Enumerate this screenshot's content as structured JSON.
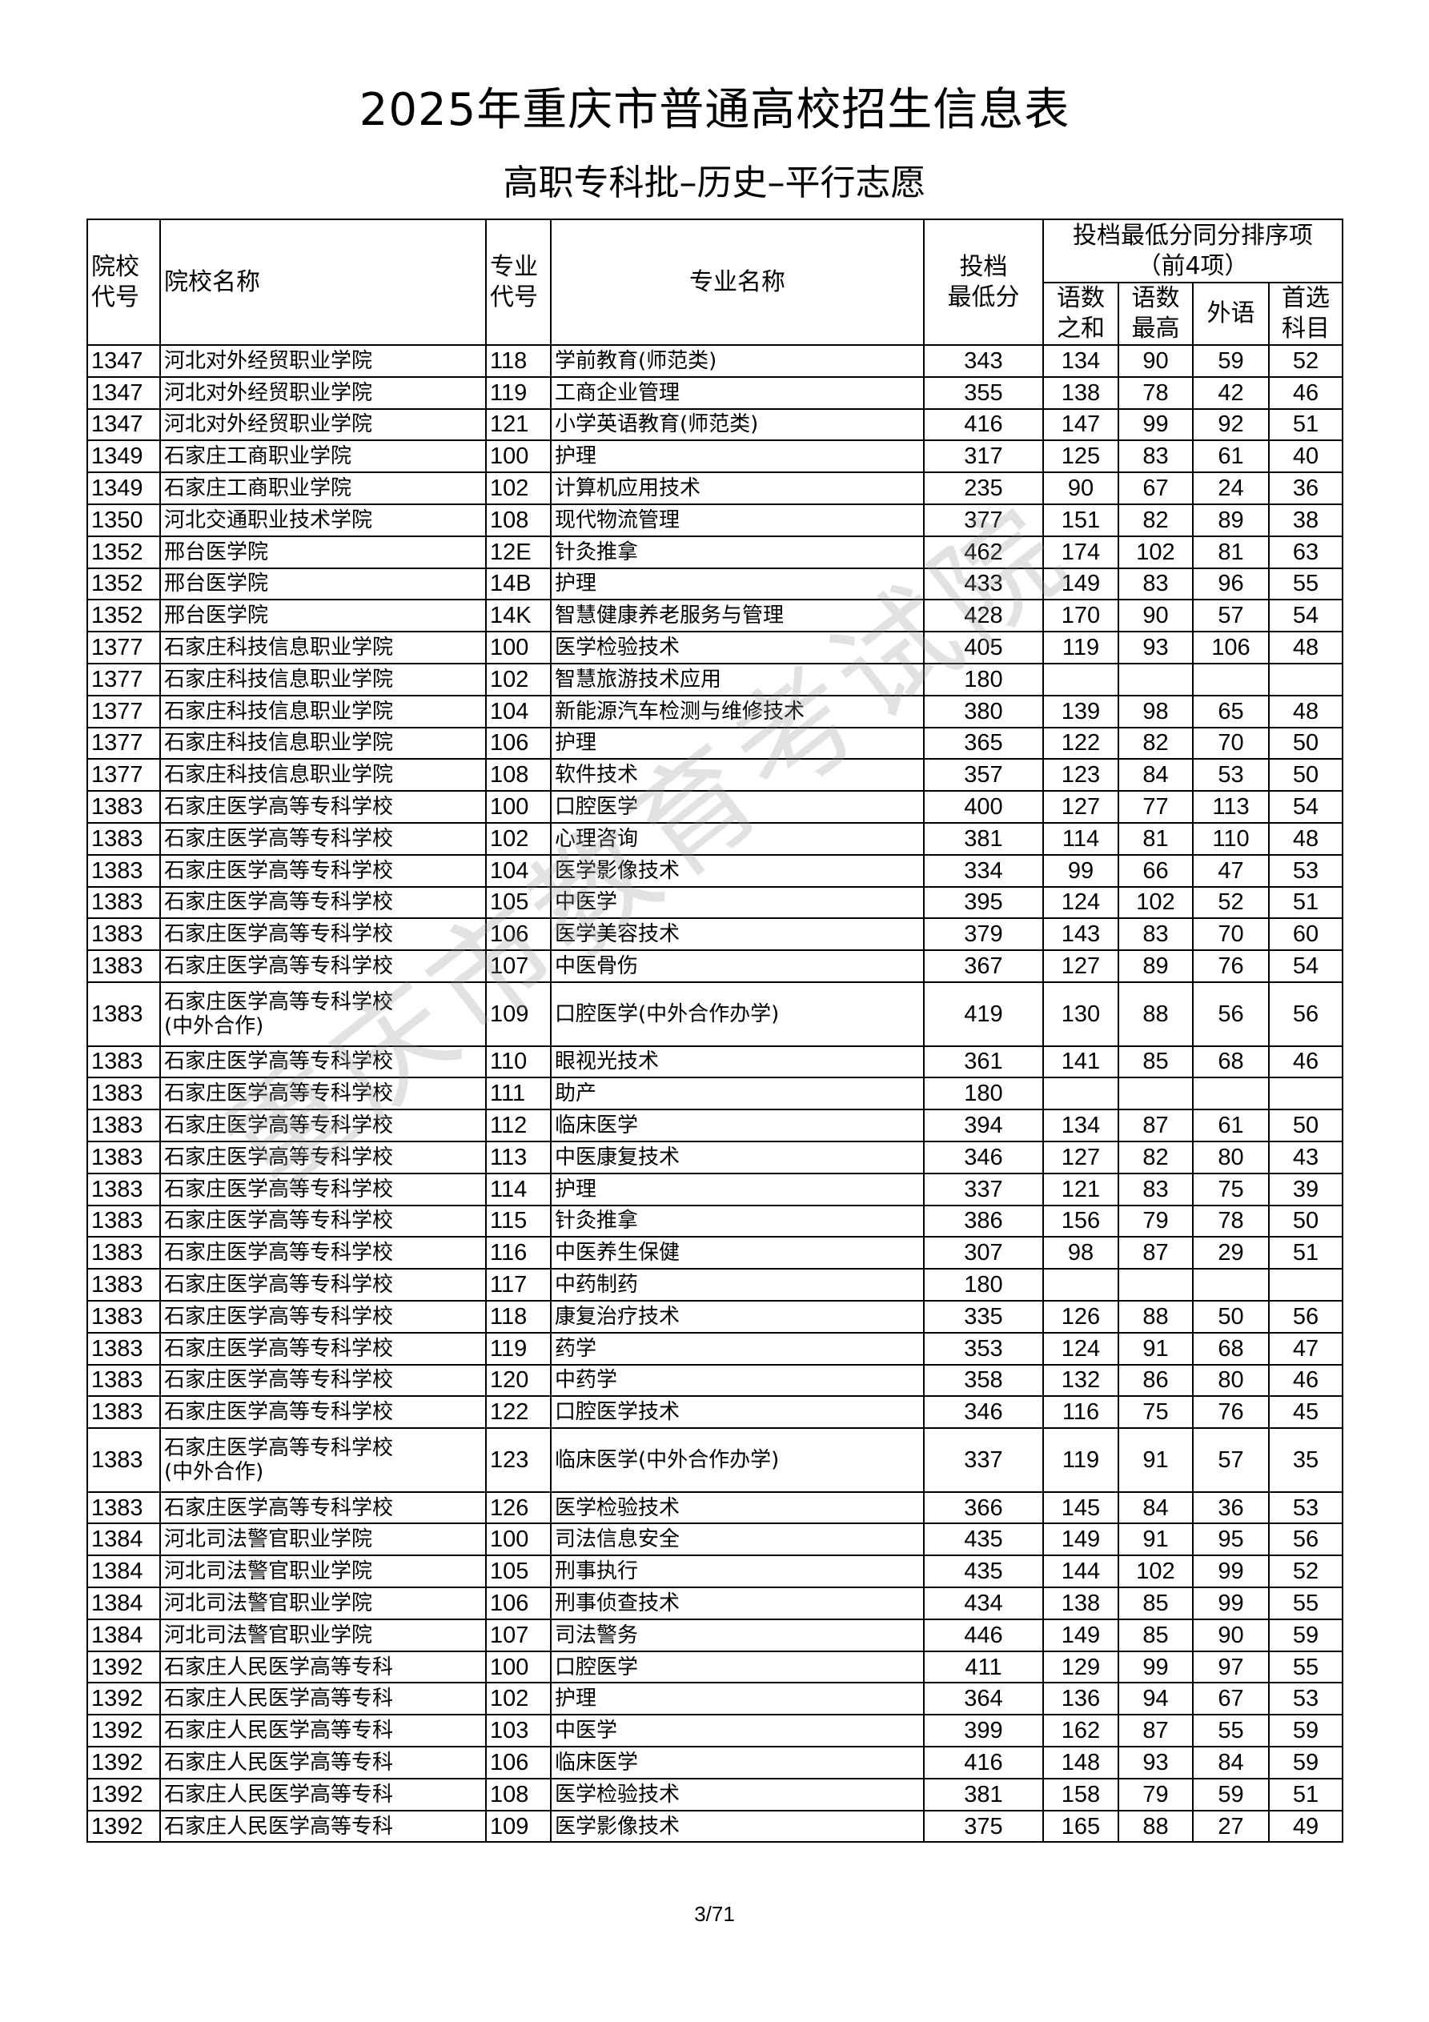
{
  "title": "2025年重庆市普通高校招生信息表",
  "subtitle": "高职专科批–历史–平行志愿",
  "watermark": "重庆市教育考试院",
  "headers": {
    "school_code": "院校\n代号",
    "school_name": "院校名称",
    "major_code": "专业\n代号",
    "major_name": "专业名称",
    "min_score": "投档\n最低分",
    "tiebreak_group": "投档最低分同分排序项\n（前4项）",
    "tb1": "语数\n之和",
    "tb2": "语数\n最高",
    "tb3": "外语",
    "tb4": "首选\n科目"
  },
  "rows": [
    [
      "1347",
      "河北对外经贸职业学院",
      "118",
      "学前教育(师范类)",
      "343",
      "134",
      "90",
      "59",
      "52"
    ],
    [
      "1347",
      "河北对外经贸职业学院",
      "119",
      "工商企业管理",
      "355",
      "138",
      "78",
      "42",
      "46"
    ],
    [
      "1347",
      "河北对外经贸职业学院",
      "121",
      "小学英语教育(师范类)",
      "416",
      "147",
      "99",
      "92",
      "51"
    ],
    [
      "1349",
      "石家庄工商职业学院",
      "100",
      "护理",
      "317",
      "125",
      "83",
      "61",
      "40"
    ],
    [
      "1349",
      "石家庄工商职业学院",
      "102",
      "计算机应用技术",
      "235",
      "90",
      "67",
      "24",
      "36"
    ],
    [
      "1350",
      "河北交通职业技术学院",
      "108",
      "现代物流管理",
      "377",
      "151",
      "82",
      "89",
      "38"
    ],
    [
      "1352",
      "邢台医学院",
      "12E",
      "针灸推拿",
      "462",
      "174",
      "102",
      "81",
      "63"
    ],
    [
      "1352",
      "邢台医学院",
      "14B",
      "护理",
      "433",
      "149",
      "83",
      "96",
      "55"
    ],
    [
      "1352",
      "邢台医学院",
      "14K",
      "智慧健康养老服务与管理",
      "428",
      "170",
      "90",
      "57",
      "54"
    ],
    [
      "1377",
      "石家庄科技信息职业学院",
      "100",
      "医学检验技术",
      "405",
      "119",
      "93",
      "106",
      "48"
    ],
    [
      "1377",
      "石家庄科技信息职业学院",
      "102",
      "智慧旅游技术应用",
      "180",
      "",
      "",
      "",
      ""
    ],
    [
      "1377",
      "石家庄科技信息职业学院",
      "104",
      "新能源汽车检测与维修技术",
      "380",
      "139",
      "98",
      "65",
      "48"
    ],
    [
      "1377",
      "石家庄科技信息职业学院",
      "106",
      "护理",
      "365",
      "122",
      "82",
      "70",
      "50"
    ],
    [
      "1377",
      "石家庄科技信息职业学院",
      "108",
      "软件技术",
      "357",
      "123",
      "84",
      "53",
      "50"
    ],
    [
      "1383",
      "石家庄医学高等专科学校",
      "100",
      "口腔医学",
      "400",
      "127",
      "77",
      "113",
      "54"
    ],
    [
      "1383",
      "石家庄医学高等专科学校",
      "102",
      "心理咨询",
      "381",
      "114",
      "81",
      "110",
      "48"
    ],
    [
      "1383",
      "石家庄医学高等专科学校",
      "104",
      "医学影像技术",
      "334",
      "99",
      "66",
      "47",
      "53"
    ],
    [
      "1383",
      "石家庄医学高等专科学校",
      "105",
      "中医学",
      "395",
      "124",
      "102",
      "52",
      "51"
    ],
    [
      "1383",
      "石家庄医学高等专科学校",
      "106",
      "医学美容技术",
      "379",
      "143",
      "83",
      "70",
      "60"
    ],
    [
      "1383",
      "石家庄医学高等专科学校",
      "107",
      "中医骨伤",
      "367",
      "127",
      "89",
      "76",
      "54"
    ],
    [
      "1383",
      "石家庄医学高等专科学校\n(中外合作)",
      "109",
      "口腔医学(中外合作办学)",
      "419",
      "130",
      "88",
      "56",
      "56"
    ],
    [
      "1383",
      "石家庄医学高等专科学校",
      "110",
      "眼视光技术",
      "361",
      "141",
      "85",
      "68",
      "46"
    ],
    [
      "1383",
      "石家庄医学高等专科学校",
      "111",
      "助产",
      "180",
      "",
      "",
      "",
      ""
    ],
    [
      "1383",
      "石家庄医学高等专科学校",
      "112",
      "临床医学",
      "394",
      "134",
      "87",
      "61",
      "50"
    ],
    [
      "1383",
      "石家庄医学高等专科学校",
      "113",
      "中医康复技术",
      "346",
      "127",
      "82",
      "80",
      "43"
    ],
    [
      "1383",
      "石家庄医学高等专科学校",
      "114",
      "护理",
      "337",
      "121",
      "83",
      "75",
      "39"
    ],
    [
      "1383",
      "石家庄医学高等专科学校",
      "115",
      "针灸推拿",
      "386",
      "156",
      "79",
      "78",
      "50"
    ],
    [
      "1383",
      "石家庄医学高等专科学校",
      "116",
      "中医养生保健",
      "307",
      "98",
      "87",
      "29",
      "51"
    ],
    [
      "1383",
      "石家庄医学高等专科学校",
      "117",
      "中药制药",
      "180",
      "",
      "",
      "",
      ""
    ],
    [
      "1383",
      "石家庄医学高等专科学校",
      "118",
      "康复治疗技术",
      "335",
      "126",
      "88",
      "50",
      "56"
    ],
    [
      "1383",
      "石家庄医学高等专科学校",
      "119",
      "药学",
      "353",
      "124",
      "91",
      "68",
      "47"
    ],
    [
      "1383",
      "石家庄医学高等专科学校",
      "120",
      "中药学",
      "358",
      "132",
      "86",
      "80",
      "46"
    ],
    [
      "1383",
      "石家庄医学高等专科学校",
      "122",
      "口腔医学技术",
      "346",
      "116",
      "75",
      "76",
      "45"
    ],
    [
      "1383",
      "石家庄医学高等专科学校\n(中外合作)",
      "123",
      "临床医学(中外合作办学)",
      "337",
      "119",
      "91",
      "57",
      "35"
    ],
    [
      "1383",
      "石家庄医学高等专科学校",
      "126",
      "医学检验技术",
      "366",
      "145",
      "84",
      "36",
      "53"
    ],
    [
      "1384",
      "河北司法警官职业学院",
      "100",
      "司法信息安全",
      "435",
      "149",
      "91",
      "95",
      "56"
    ],
    [
      "1384",
      "河北司法警官职业学院",
      "105",
      "刑事执行",
      "435",
      "144",
      "102",
      "99",
      "52"
    ],
    [
      "1384",
      "河北司法警官职业学院",
      "106",
      "刑事侦查技术",
      "434",
      "138",
      "85",
      "99",
      "55"
    ],
    [
      "1384",
      "河北司法警官职业学院",
      "107",
      "司法警务",
      "446",
      "149",
      "85",
      "90",
      "59"
    ],
    [
      "1392",
      "石家庄人民医学高等专科",
      "100",
      "口腔医学",
      "411",
      "129",
      "99",
      "97",
      "55"
    ],
    [
      "1392",
      "石家庄人民医学高等专科",
      "102",
      "护理",
      "364",
      "136",
      "94",
      "67",
      "53"
    ],
    [
      "1392",
      "石家庄人民医学高等专科",
      "103",
      "中医学",
      "399",
      "162",
      "87",
      "55",
      "59"
    ],
    [
      "1392",
      "石家庄人民医学高等专科",
      "106",
      "临床医学",
      "416",
      "148",
      "93",
      "84",
      "59"
    ],
    [
      "1392",
      "石家庄人民医学高等专科",
      "108",
      "医学检验技术",
      "381",
      "158",
      "79",
      "59",
      "51"
    ],
    [
      "1392",
      "石家庄人民医学高等专科",
      "109",
      "医学影像技术",
      "375",
      "165",
      "88",
      "27",
      "49"
    ]
  ],
  "footer": {
    "page": "3/71"
  }
}
